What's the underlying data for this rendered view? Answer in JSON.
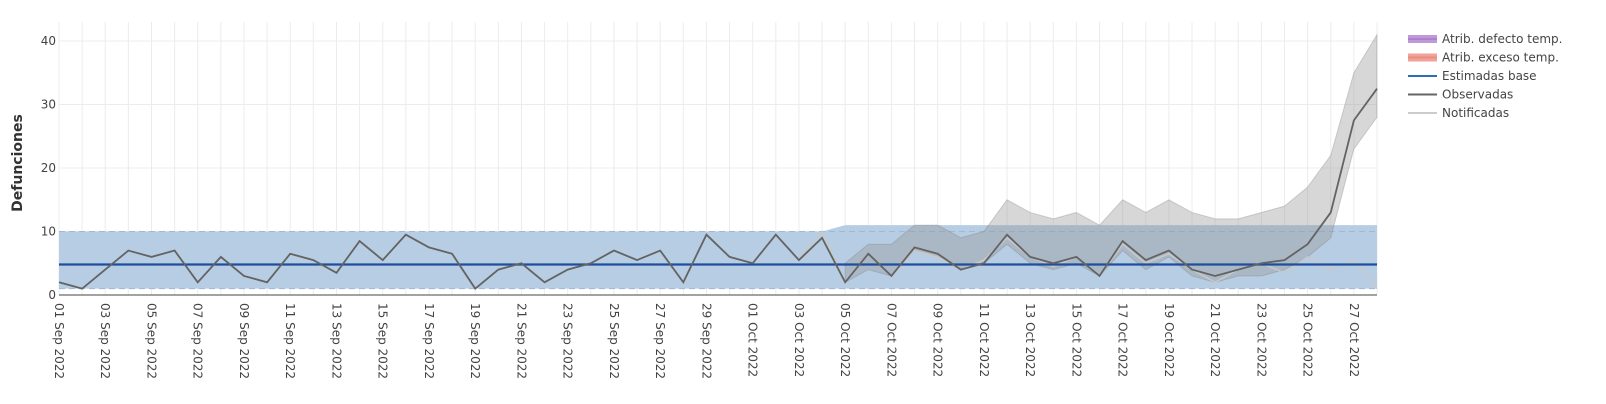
{
  "chart_data": {
    "type": "line",
    "ylabel": "Defunciones",
    "ylim": [
      0,
      43
    ],
    "yticks": [
      0,
      10,
      20,
      30,
      40
    ],
    "grid": true,
    "legend_position": "top-right",
    "legend": [
      {
        "label": "Atrib. defecto temp.",
        "kind": "band",
        "color": "#b07fd0"
      },
      {
        "label": "Atrib. exceso temp.",
        "kind": "band",
        "color": "#ec8c80"
      },
      {
        "label": "Estimadas base",
        "kind": "line",
        "color": "#2c6fb5"
      },
      {
        "label": "Observadas",
        "kind": "line",
        "color": "#666666"
      },
      {
        "label": "Notificadas",
        "kind": "line",
        "color": "#cccccc"
      }
    ],
    "x_start": "2022-09-01",
    "x_end": "2022-10-28",
    "x_ticks": [
      "01 Sep 2022",
      "03 Sep 2022",
      "05 Sep 2022",
      "07 Sep 2022",
      "09 Sep 2022",
      "11 Sep 2022",
      "13 Sep 2022",
      "15 Sep 2022",
      "17 Sep 2022",
      "19 Sep 2022",
      "21 Sep 2022",
      "23 Sep 2022",
      "25 Sep 2022",
      "27 Sep 2022",
      "29 Sep 2022",
      "01 Oct 2022",
      "03 Oct 2022",
      "05 Oct 2022",
      "07 Oct 2022",
      "09 Oct 2022",
      "11 Oct 2022",
      "13 Oct 2022",
      "15 Oct 2022",
      "17 Oct 2022",
      "19 Oct 2022",
      "21 Oct 2022",
      "23 Oct 2022",
      "25 Oct 2022",
      "27 Oct 2022"
    ],
    "series": [
      {
        "name": "Estimadas base",
        "value": 4.8,
        "band": [
          1.0,
          10.0
        ],
        "band_from_2022_10_05": [
          1.0,
          11.0
        ]
      },
      {
        "name": "Observadas",
        "values": [
          2,
          1,
          4,
          7,
          6,
          7,
          2,
          6,
          3,
          2,
          6.5,
          5.5,
          3.5,
          8.5,
          5.5,
          9.5,
          7.5,
          6.5,
          1,
          4,
          5,
          2,
          4,
          5,
          7,
          5.5,
          7,
          2,
          9.5,
          6,
          5,
          9.5,
          5.5,
          9,
          2,
          6.5,
          3,
          7.5,
          6.5,
          4,
          5,
          9.5,
          6,
          5,
          6,
          3,
          8.5,
          5.5,
          7,
          4,
          3,
          4,
          5,
          5.5,
          8,
          13,
          27.5,
          32.5
        ]
      },
      {
        "name": "Notificadas",
        "values": [
          2,
          1,
          4,
          7,
          6,
          7,
          2,
          6,
          3,
          2,
          6.5,
          5.5,
          3.5,
          8.5,
          5.5,
          9.5,
          7.5,
          6.5,
          1,
          4,
          5,
          2,
          4,
          5,
          7,
          5.5,
          7,
          2,
          9.5,
          6,
          5,
          9.5,
          5.5,
          10,
          2,
          6.5,
          3,
          7,
          6,
          4,
          5.5,
          9,
          6,
          4.5,
          6,
          3,
          8,
          5,
          6.5,
          4,
          2,
          4,
          5,
          3.5,
          6,
          4,
          5.5,
          1
        ]
      }
    ],
    "observadas_band_from_2022_10_05": [
      [
        2,
        5
      ],
      [
        4,
        8
      ],
      [
        3,
        8
      ],
      [
        7,
        11
      ],
      [
        6,
        11
      ],
      [
        4,
        9
      ],
      [
        5,
        10
      ],
      [
        8,
        15
      ],
      [
        5,
        13
      ],
      [
        4,
        12
      ],
      [
        5,
        13
      ],
      [
        3,
        11
      ],
      [
        7,
        15
      ],
      [
        4,
        13
      ],
      [
        6,
        15
      ],
      [
        3,
        13
      ],
      [
        2,
        12
      ],
      [
        3,
        12
      ],
      [
        3,
        13
      ],
      [
        4,
        14
      ],
      [
        6,
        17
      ],
      [
        9,
        22
      ],
      [
        23,
        35
      ],
      [
        28,
        41
      ]
    ]
  }
}
